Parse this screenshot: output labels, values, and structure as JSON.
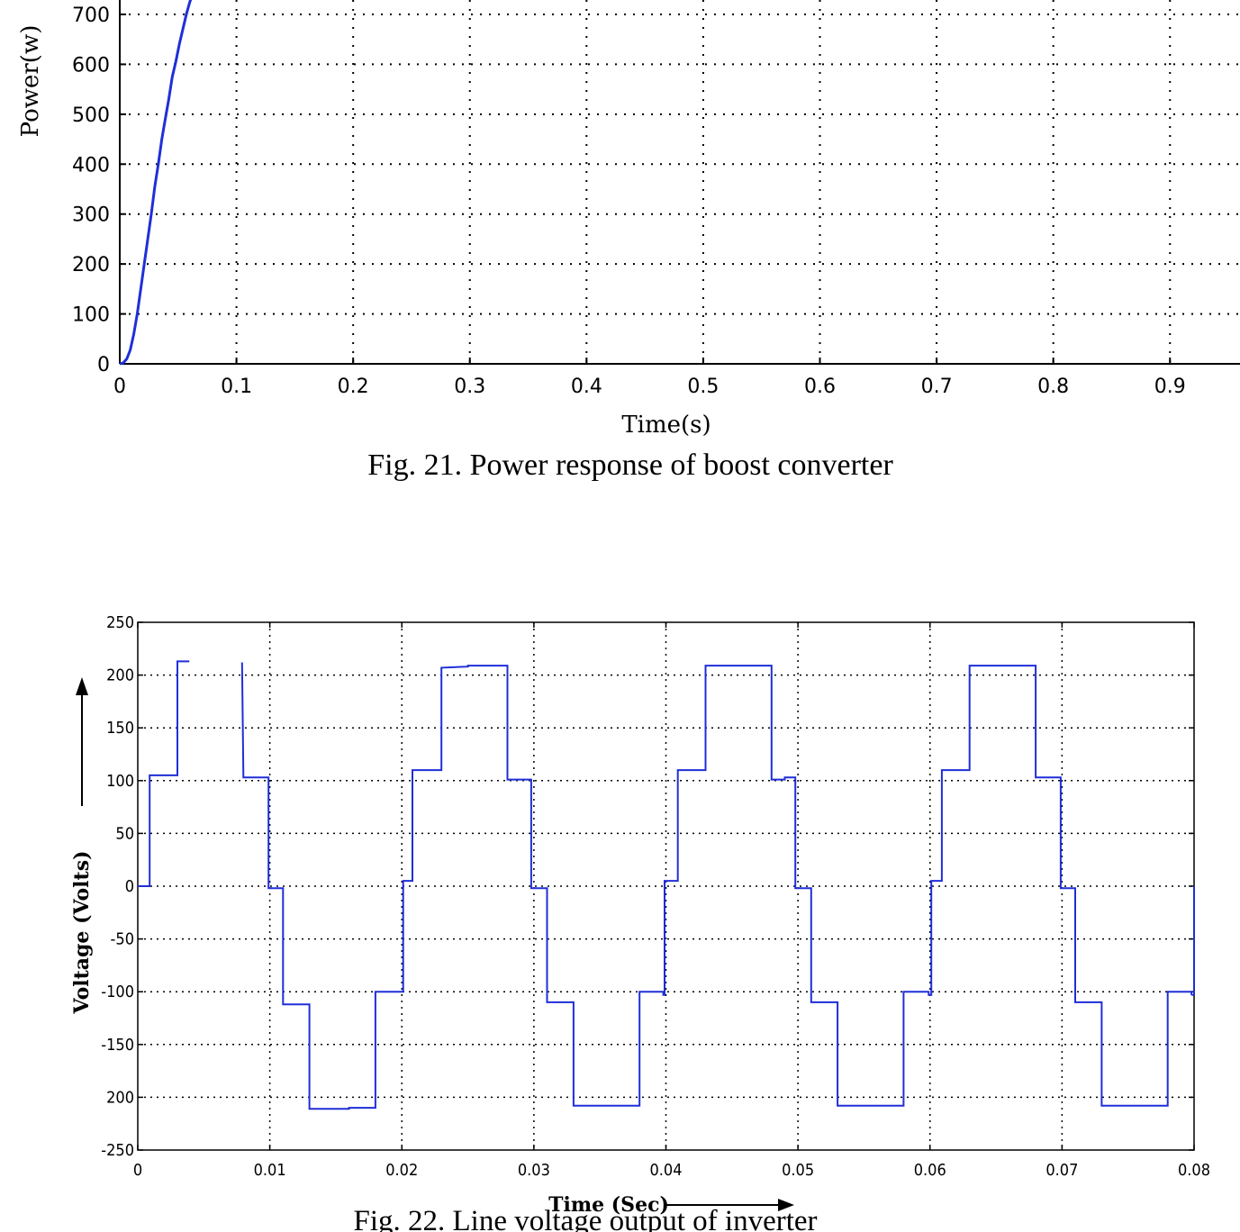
{
  "chart_data": [
    {
      "type": "line",
      "title": "",
      "xlabel": "Time(s)",
      "ylabel": "Power(w)",
      "xlim": [
        0,
        0.96
      ],
      "ylim": [
        0,
        700
      ],
      "x_ticks": [
        "0",
        "0.1",
        "0.2",
        "0.3",
        "0.4",
        "0.5",
        "0.6",
        "0.7",
        "0.8",
        "0.9"
      ],
      "y_ticks": [
        "0",
        "100",
        "200",
        "300",
        "400",
        "500",
        "600",
        "700"
      ],
      "grid": true,
      "series_color": "#1f2fd8",
      "series": [
        {
          "x": [
            0,
            0.003,
            0.006,
            0.009,
            0.012,
            0.015,
            0.018,
            0.021,
            0.024,
            0.027,
            0.03,
            0.033,
            0.036,
            0.039,
            0.042,
            0.045,
            0.048,
            0.051,
            0.054,
            0.057,
            0.06,
            0.0625
          ],
          "y": [
            0,
            2,
            10,
            28,
            60,
            100,
            150,
            200,
            250,
            300,
            355,
            400,
            450,
            490,
            530,
            575,
            605,
            640,
            670,
            700,
            725,
            740
          ]
        }
      ],
      "caption": "Fig. 21. Power response of boost converter"
    },
    {
      "type": "line",
      "title": "",
      "xlabel": "Time (Sec)",
      "ylabel": "Voltage (Volts)",
      "xlim": [
        0,
        0.08
      ],
      "ylim": [
        -250,
        250
      ],
      "x_ticks": [
        "0",
        "0.01",
        "0.02",
        "0.03",
        "0.04",
        "0.05",
        "0.06",
        "0.07",
        "0.08"
      ],
      "y_ticks": [
        "250",
        "200",
        "150",
        "100",
        "50",
        "0",
        "-50",
        "-100",
        "-150",
        "200",
        "-250"
      ],
      "grid": true,
      "series_color": "#1f2fd8",
      "series": [
        {
          "segments": [
            {
              "x": [
                0,
                0.0009,
                0.0009,
                0.003,
                0.003,
                0.0039
              ],
              "y": [
                0,
                0,
                105,
                105,
                213,
                213
              ]
            },
            {
              "x": [
                0.0079,
                0.0079,
                0.008,
                0.008,
                0.0099,
                0.0099,
                0.011,
                0.011,
                0.013,
                0.013,
                0.016,
                0.016,
                0.018,
                0.018,
                0.0198,
                0.0198,
                0.0201,
                0.0201,
                0.0208,
                0.0208,
                0.023,
                0.023,
                0.025,
                0.025,
                0.028,
                0.028,
                0.0298,
                0.0298,
                0.031,
                0.031,
                0.033,
                0.033,
                0.038,
                0.038,
                0.0398,
                0.0398,
                0.0399,
                0.0399,
                0.0409,
                0.0409,
                0.043,
                0.043,
                0.048,
                0.048,
                0.049,
                0.049,
                0.0498,
                0.0498,
                0.051,
                0.051,
                0.053,
                0.053,
                0.058,
                0.058,
                0.0599,
                0.0599,
                0.0601,
                0.0601,
                0.0609,
                0.0609,
                0.063,
                0.063,
                0.068,
                0.068,
                0.0699,
                0.0699,
                0.071,
                0.071,
                0.073,
                0.073,
                0.078,
                0.078,
                0.0798,
                0.0798
              ],
              "y": [
                212,
                212,
                103,
                103,
                103,
                -2,
                -2,
                -112,
                -112,
                -211,
                -211,
                -210,
                -210,
                -100,
                -100,
                -100,
                -100,
                5,
                5,
                110,
                110,
                207,
                208,
                209,
                209,
                101,
                101,
                -2,
                -2,
                -110,
                -110,
                -208,
                -208,
                -100,
                -100,
                -103,
                -103,
                5,
                5,
                110,
                110,
                209,
                209,
                101,
                101,
                103,
                103,
                -2,
                -2,
                -110,
                -110,
                -208,
                -208,
                -100,
                -100,
                -103,
                -103,
                5,
                5,
                110,
                110,
                209,
                209,
                103,
                103,
                -2,
                -2,
                -110,
                -110,
                -208,
                -208,
                -100,
                -100,
                -103
              ]
            },
            {
              "x": [
                0.0798,
                0.08,
                0.08
              ],
              "y": [
                -103,
                -103,
                0
              ]
            }
          ]
        }
      ],
      "caption": "Fig. 22. Line voltage output of inverter"
    }
  ]
}
